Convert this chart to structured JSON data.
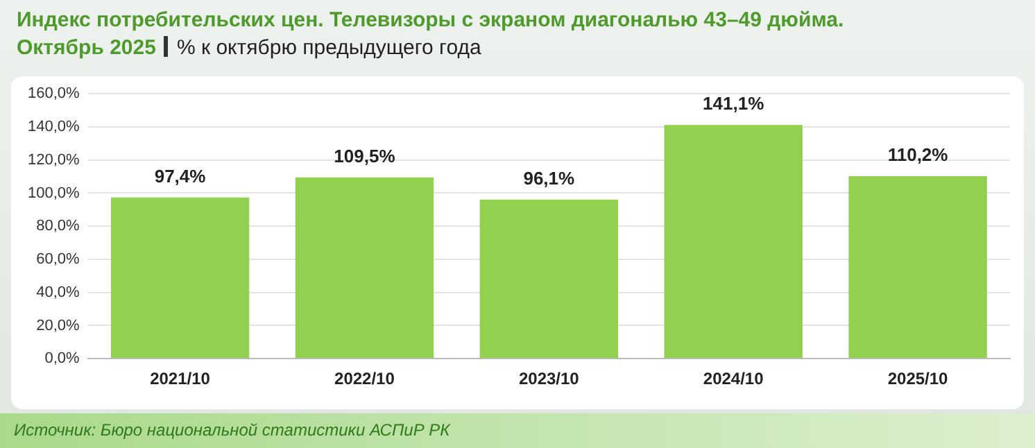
{
  "chart_data": {
    "type": "bar",
    "title": "Индекс потребительских цен. Телевизоры с экраном диагональю 43–49 дюйма.",
    "subtitle": "Октябрь 2025",
    "ylabel": "% к октябрю предыдущего года",
    "categories": [
      "2021/10",
      "2022/10",
      "2023/10",
      "2024/10",
      "2025/10"
    ],
    "values": [
      97.4,
      109.5,
      96.1,
      141.1,
      110.2
    ],
    "value_labels": [
      "97,4%",
      "109,5%",
      "96,1%",
      "141,1%",
      "110,2%"
    ],
    "color": "#92d050",
    "ylim": [
      0,
      160
    ],
    "yticks": [
      {
        "value": 0,
        "label": "0,0%"
      },
      {
        "value": 20,
        "label": "20,0%"
      },
      {
        "value": 40,
        "label": "40,0%"
      },
      {
        "value": 60,
        "label": "60,0%"
      },
      {
        "value": 80,
        "label": "80,0%"
      },
      {
        "value": 100,
        "label": "100,0%"
      },
      {
        "value": 120,
        "label": "120,0%"
      },
      {
        "value": 140,
        "label": "140,0%"
      },
      {
        "value": 160,
        "label": "160,0%"
      }
    ],
    "grid": "y",
    "legend": false,
    "annotations": [
      "Источник: Бюро национальной статистики АСПиР РК"
    ]
  }
}
